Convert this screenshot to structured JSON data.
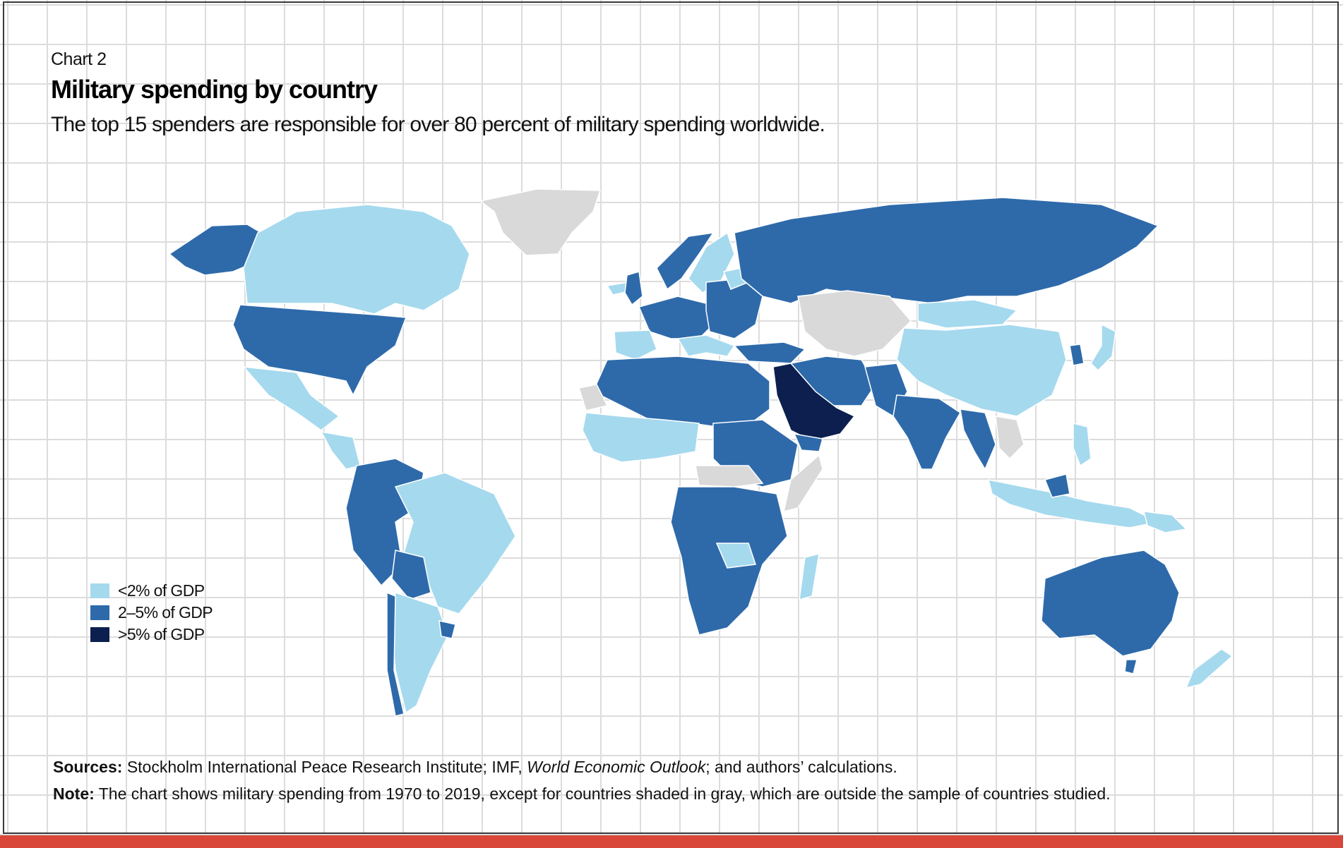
{
  "header": {
    "chart_number": "Chart 2",
    "title": "Military spending by country",
    "subtitle": "The top 15 spenders are responsible for over 80 percent of military spending worldwide."
  },
  "legend": {
    "items": [
      {
        "label": "<2% of GDP",
        "color": "#a5d9ee"
      },
      {
        "label": "2–5% of GDP",
        "color": "#2e6aaa"
      },
      {
        "label": ">5% of GDP",
        "color": "#0c1f4e"
      }
    ]
  },
  "colors": {
    "low": "#a5d9ee",
    "mid": "#2e6aaa",
    "high": "#0c1f4e",
    "no_data": "#d9d9d9",
    "accent_bar": "#d9473a"
  },
  "footer": {
    "sources_label": "Sources:",
    "sources_text_1": " Stockholm International Peace Research Institute; IMF, ",
    "sources_italic": "World Economic Outlook",
    "sources_text_2": "; and authors’ calculations.",
    "note_label": "Note:",
    "note_text": " The chart shows military spending from 1970 to 2019, except for countries shaded in gray, which are outside the sample of countries studied."
  }
}
